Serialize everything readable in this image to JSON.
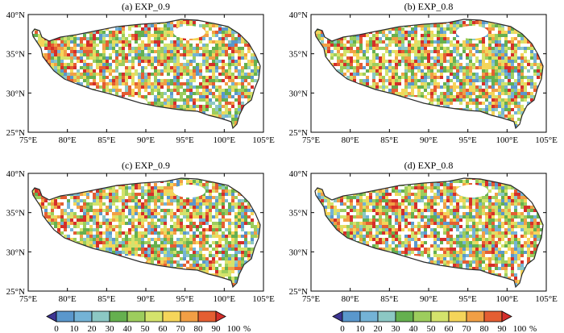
{
  "panels": [
    {
      "title": "(a) EXP_0.9"
    },
    {
      "title": "(b) EXP_0.8"
    },
    {
      "title": "(c) EXP_0.9"
    },
    {
      "title": "(d) EXP_0.8"
    }
  ],
  "axes": {
    "lon_ticks": [
      "75°E",
      "80°E",
      "85°E",
      "90°E",
      "95°E",
      "100°E",
      "105°E"
    ],
    "lat_ticks": [
      "40°N",
      "35°N",
      "30°N",
      "25°N"
    ],
    "lon_range": [
      75,
      105
    ],
    "lat_range": [
      25,
      40
    ]
  },
  "colorbar": {
    "labels": [
      "0",
      "10",
      "20",
      "30",
      "40",
      "50",
      "60",
      "70",
      "80",
      "90",
      "100"
    ],
    "unit": "%",
    "colors": [
      "#3d3592",
      "#5a97cc",
      "#74b3d6",
      "#8cc8c4",
      "#65b04f",
      "#9dcd5d",
      "#d4e36c",
      "#f5d55a",
      "#f19f45",
      "#e45e32",
      "#d42e2a"
    ]
  }
}
